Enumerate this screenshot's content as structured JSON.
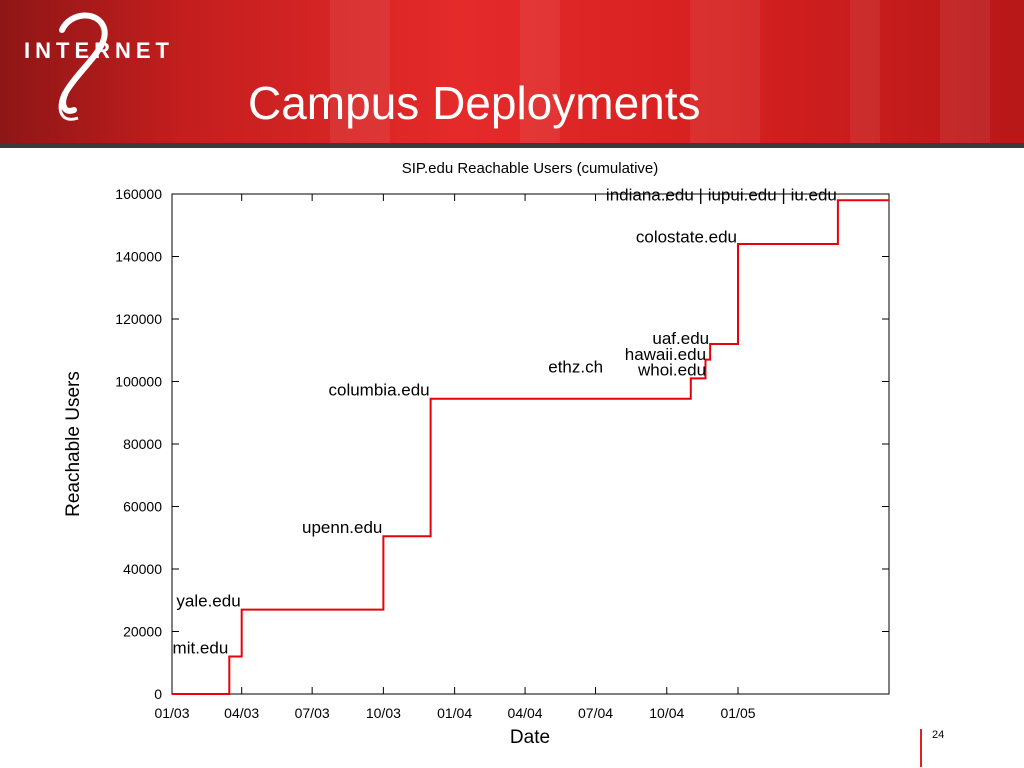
{
  "slide": {
    "title": "Campus Deployments",
    "page_number": "24",
    "logo_text": "INTERNET",
    "logo_mark": "2"
  },
  "colors": {
    "banner": "#d62020",
    "line": "#e8000b",
    "accent_bar": "#e02020"
  },
  "chart_data": {
    "type": "line",
    "step": true,
    "title": "SIP.edu Reachable Users (cumulative)",
    "xlabel": "Date",
    "ylabel": "Reachable Users",
    "x_ticks": [
      "01/03",
      "04/03",
      "07/03",
      "10/03",
      "01/04",
      "04/04",
      "07/04",
      "10/04",
      "01/05"
    ],
    "y_ticks": [
      "0",
      "20000",
      "40000",
      "60000",
      "80000",
      "100000",
      "120000",
      "140000",
      "160000"
    ],
    "xlim": [
      "2003-01-01",
      "2005-07-15"
    ],
    "ylim": [
      0,
      160000
    ],
    "grid": false,
    "series": [
      {
        "points": [
          {
            "x": "2003-01-01",
            "y": 0
          },
          {
            "x": "2003-03-16",
            "y": 12000
          },
          {
            "x": "2003-04-01",
            "y": 27000
          },
          {
            "x": "2003-10-01",
            "y": 50500
          },
          {
            "x": "2003-12-01",
            "y": 94500
          },
          {
            "x": "2004-11-01",
            "y": 101000
          },
          {
            "x": "2004-11-20",
            "y": 107000
          },
          {
            "x": "2004-11-26",
            "y": 112000
          },
          {
            "x": "2005-01-01",
            "y": 144000
          },
          {
            "x": "2005-05-10",
            "y": 158000
          },
          {
            "x": "2005-07-15",
            "y": 158000
          }
        ]
      }
    ],
    "annotations": [
      {
        "text": "mit.edu",
        "x": "2003-03-16",
        "y": 12000
      },
      {
        "text": "yale.edu",
        "x": "2003-04-01",
        "y": 27000
      },
      {
        "text": "upenn.edu",
        "x": "2003-10-01",
        "y": 50500
      },
      {
        "text": "columbia.edu",
        "x": "2003-12-01",
        "y": 94500
      },
      {
        "text": "ethz.ch",
        "x": "2004-07-12",
        "y": 102000
      },
      {
        "text": "whoi.edu",
        "x": "2004-11-22",
        "y": 101000
      },
      {
        "text": "hawaii.edu",
        "x": "2004-11-22",
        "y": 106000
      },
      {
        "text": "uaf.edu",
        "x": "2004-11-26",
        "y": 111000
      },
      {
        "text": "colostate.edu",
        "x": "2005-01-01",
        "y": 143500
      },
      {
        "text": "indiana.edu | iupui.edu | iu.edu",
        "x": "2005-05-10",
        "y": 157000
      }
    ]
  }
}
